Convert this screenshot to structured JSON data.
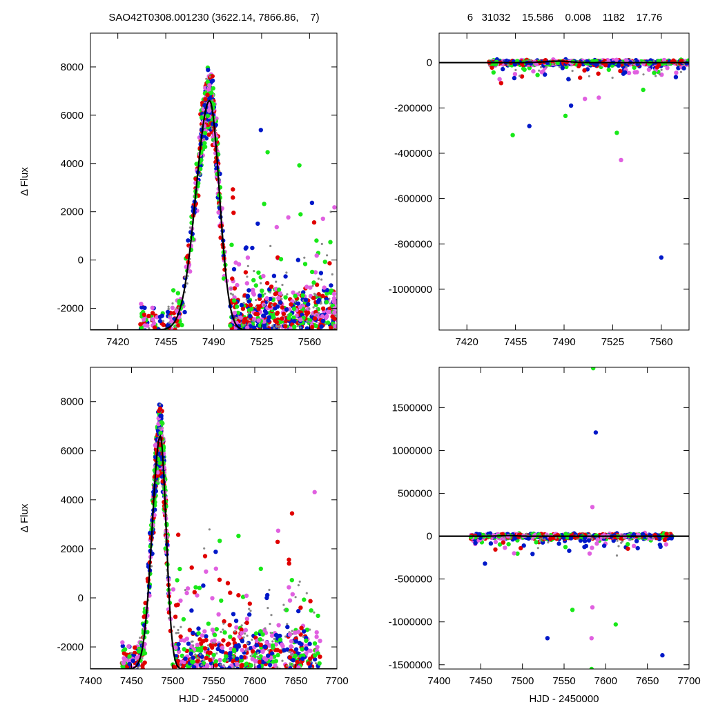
{
  "header": {
    "left_title": "SAO42T0308.001230 (3622.14, 7866.86,    7)",
    "right_title": "6   31032    15.586    0.008    1182    17.76"
  },
  "colors": {
    "gray": "#888888",
    "red": "#e00000",
    "blue": "#0018c8",
    "green": "#18e818",
    "magenta": "#e060e0",
    "model": "#000000"
  },
  "chart_data": [
    {
      "type": "scatter",
      "ylabel": "Δ Flux",
      "xlabel": "",
      "xlim": [
        7400,
        7580
      ],
      "ylim": [
        -2900,
        9400
      ],
      "xticks": [
        7420,
        7455,
        7490,
        7525,
        7560
      ],
      "yticks": [
        -2000,
        0,
        2000,
        4000,
        6000,
        8000
      ],
      "model": {
        "peak_x": 7487,
        "peak_y": 6600,
        "base": -2900,
        "tau_rise": 14,
        "tau_fall": 10
      },
      "scatter": {
        "x_start": 7436,
        "x_end": 7580,
        "bunch_center": 7487,
        "bunch_width": 9
      }
    },
    {
      "type": "scatter",
      "ylabel": "",
      "xlabel": "",
      "xlim": [
        7400,
        7580
      ],
      "ylim": [
        -1180000,
        130000
      ],
      "xticks": [
        7420,
        7455,
        7490,
        7525,
        7560
      ],
      "yticks": [
        -1000000,
        -800000,
        -600000,
        -400000,
        -200000,
        0
      ],
      "model": {
        "peak_x": 7487,
        "peak_y": 6600,
        "base": 0,
        "tau_rise": 14,
        "tau_fall": 10
      },
      "scatter": {
        "x_start": 7436,
        "x_end": 7580,
        "outliers": [
          [
            7491,
            -235000
          ],
          [
            7495,
            -190000
          ],
          [
            7515,
            -155000
          ],
          [
            7528,
            -310000
          ],
          [
            7560,
            -860000
          ],
          [
            7531,
            -430000
          ],
          [
            7453,
            -320000
          ],
          [
            7465,
            -280000
          ],
          [
            7505,
            -160000
          ],
          [
            7547,
            -120000
          ]
        ]
      }
    },
    {
      "type": "scatter",
      "ylabel": "Δ Flux",
      "xlabel": "HJD - 2450000",
      "xlim": [
        7400,
        7700
      ],
      "ylim": [
        -2900,
        9400
      ],
      "xticks": [
        7400,
        7450,
        7500,
        7550,
        7600,
        7650,
        7700
      ],
      "yticks": [
        -2000,
        0,
        2000,
        4000,
        6000,
        8000
      ],
      "model": {
        "peak_x": 7485,
        "peak_y": 6600,
        "base": -2900,
        "tau_rise": 14,
        "tau_fall": 10
      },
      "scatter": {
        "x_start": 7438,
        "x_end": 7680,
        "bunch_center": 7485,
        "bunch_width": 9
      }
    },
    {
      "type": "scatter",
      "ylabel": "",
      "xlabel": "HJD - 2450000",
      "xlim": [
        7400,
        7700
      ],
      "ylim": [
        -1550000,
        1970000
      ],
      "xticks": [
        7400,
        7450,
        7500,
        7550,
        7600,
        7650,
        7700
      ],
      "yticks": [
        -1500000,
        -1000000,
        -500000,
        0,
        500000,
        1000000,
        1500000
      ],
      "model": {
        "peak_x": 7485,
        "peak_y": 6600,
        "base": 0,
        "tau_rise": 14,
        "tau_fall": 10
      },
      "scatter": {
        "x_start": 7438,
        "x_end": 7680,
        "outliers": [
          [
            7585,
            1960000
          ],
          [
            7588,
            1210000
          ],
          [
            7584,
            340000
          ],
          [
            7560,
            -860000
          ],
          [
            7530,
            -1190000
          ],
          [
            7583,
            -1190000
          ],
          [
            7612,
            -1030000
          ],
          [
            7668,
            -1390000
          ],
          [
            7584,
            -830000
          ],
          [
            7583,
            -1550000
          ],
          [
            7455,
            -320000
          ],
          [
            7490,
            -200000
          ]
        ]
      }
    }
  ]
}
